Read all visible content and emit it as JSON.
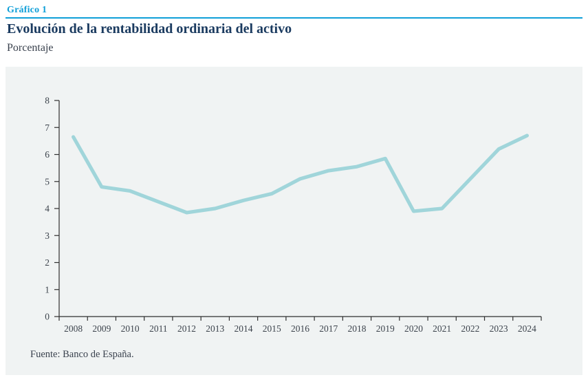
{
  "header": {
    "tag": "Gráfico 1",
    "title": "Evolución de la rentabilidad ordinaria del activo",
    "subtitle": "Porcentaje"
  },
  "source": "Fuente: Banco de España.",
  "colors": {
    "accent_cyan": "#0f9fd8",
    "title_navy": "#1b3b60",
    "body_text": "#39414d",
    "axis_stroke": "#2e2e2e",
    "tick_label": "#3c434c",
    "line_teal": "#a0d5da",
    "panel_bg": "#f0f3f3"
  },
  "chart_data": {
    "type": "line",
    "title": "Evolución de la rentabilidad ordinaria del activo",
    "xlabel": "",
    "ylabel": "Porcentaje",
    "categories": [
      "2008",
      "2009",
      "2010",
      "2011",
      "2012",
      "2013",
      "2014",
      "2015",
      "2016",
      "2017",
      "2018",
      "2019",
      "2020",
      "2021",
      "2022",
      "2023",
      "2024"
    ],
    "series": [
      {
        "name": "Rentabilidad ordinaria del activo",
        "values": [
          6.65,
          4.8,
          4.65,
          4.25,
          3.85,
          4.0,
          4.3,
          4.55,
          5.1,
          5.4,
          5.55,
          5.85,
          3.9,
          4.0,
          5.1,
          6.2,
          6.7
        ]
      }
    ],
    "ylim": [
      0,
      8
    ],
    "yticks": [
      0,
      1,
      2,
      3,
      4,
      5,
      6,
      7,
      8
    ],
    "grid": false,
    "legend": false
  }
}
